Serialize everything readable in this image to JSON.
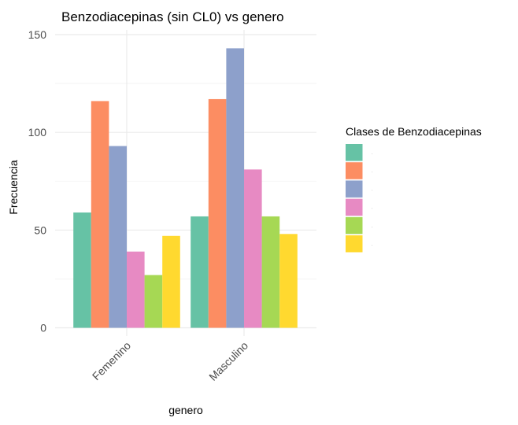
{
  "chart_data": {
    "type": "bar",
    "title": "Benzodiacepinas (sin CL0) vs genero",
    "xlabel": "genero",
    "ylabel": "Frecuencia",
    "categories": [
      "Femenino",
      "Masculino"
    ],
    "series": [
      {
        "name": "",
        "color": "#66C2A5",
        "values": [
          59,
          57
        ]
      },
      {
        "name": "",
        "color": "#FC8D62",
        "values": [
          116,
          117
        ]
      },
      {
        "name": "",
        "color": "#8DA0CB",
        "values": [
          93,
          143
        ]
      },
      {
        "name": "",
        "color": "#E78AC3",
        "values": [
          39,
          81
        ]
      },
      {
        "name": "",
        "color": "#A6D854",
        "values": [
          27,
          57
        ]
      },
      {
        "name": "",
        "color": "#FFD92F",
        "values": [
          47,
          48
        ]
      }
    ],
    "ylim": [
      0,
      150
    ],
    "yticks": [
      0,
      50,
      100,
      150
    ],
    "grid": true,
    "legend": {
      "title": "Clases de Benzodiacepinas",
      "position": "right",
      "labels": [
        "·",
        "·",
        "·",
        "·",
        "·",
        "·"
      ]
    }
  }
}
